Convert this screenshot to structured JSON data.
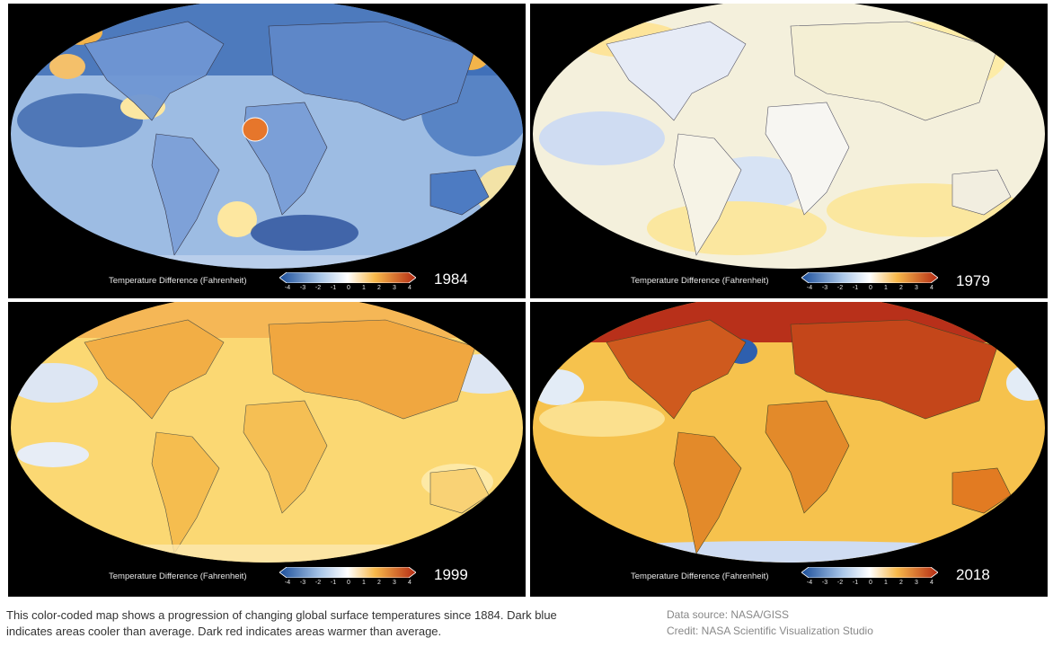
{
  "legend": {
    "title": "Temperature Difference (Fahrenheit)",
    "ticks": [
      "-4",
      "-3",
      "-2",
      "-1",
      "0",
      "1",
      "2",
      "3",
      "4"
    ],
    "colors": [
      "#1b4e9a",
      "#4f86c6",
      "#a9c6e8",
      "#ffffff",
      "#fde79a",
      "#f7b84a",
      "#e1731f",
      "#b42a14"
    ]
  },
  "panels": [
    {
      "year": "1984",
      "ocean_color": "#9dbce3",
      "land_color": "#6f96d3",
      "anomaly": "cool"
    },
    {
      "year": "1979",
      "ocean_color": "#f4f0dc",
      "land_color": "#eaeef8",
      "anomaly": "neutral"
    },
    {
      "year": "1999",
      "ocean_color": "#fbd873",
      "land_color": "#f5bd4f",
      "anomaly": "warm"
    },
    {
      "year": "2018",
      "ocean_color": "#f6c24d",
      "land_color": "#e38a2a",
      "anomaly": "hot"
    }
  ],
  "caption": "This color-coded map shows a progression of changing global surface temperatures since 1884. Dark blue indicates areas cooler than average. Dark red indicates areas warmer than average.",
  "credits": {
    "source": "Data source: NASA/GISS",
    "credit": "Credit: NASA Scientific Visualization Studio"
  }
}
